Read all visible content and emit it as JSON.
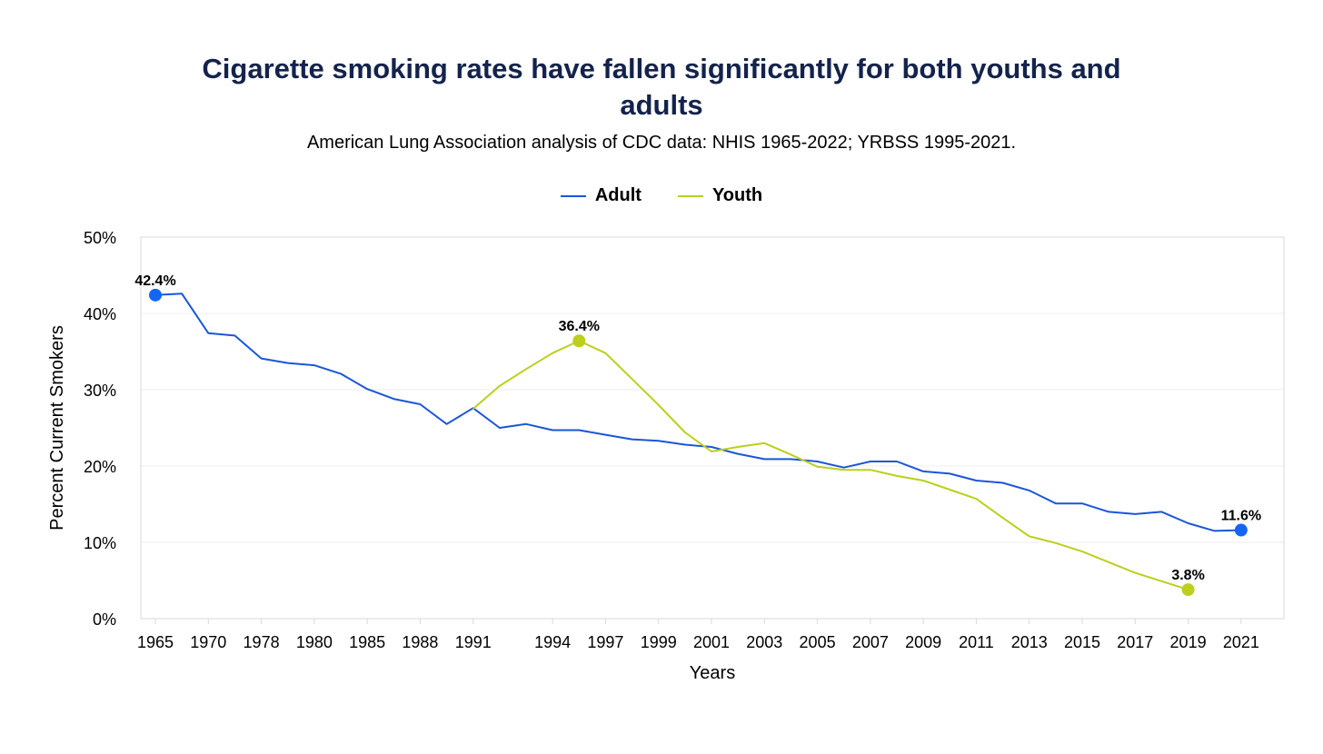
{
  "chart_data": {
    "type": "line",
    "title_lines": [
      "Cigarette smoking rates have fallen significantly for both youths and",
      "adults"
    ],
    "subtitle": "American Lung Association analysis of CDC data: NHIS 1965-2022; YRBSS 1995-2021.",
    "xlabel": "Years",
    "ylabel": "Percent Current Smokers",
    "ylim": [
      0,
      50
    ],
    "yticks": [
      0,
      10,
      20,
      30,
      40,
      50
    ],
    "ytick_labels": [
      "0%",
      "10%",
      "20%",
      "30%",
      "40%",
      "50%"
    ],
    "categories": [
      "1965",
      "1966",
      "1970",
      "1974",
      "1978",
      "1979",
      "1980",
      "1983",
      "1985",
      "1987",
      "1988",
      "1990",
      "1991",
      "1992",
      "1993",
      "1994",
      "1995",
      "1997",
      "1998",
      "1999",
      "2000",
      "2001",
      "2002",
      "2003",
      "2004",
      "2005",
      "2006",
      "2007",
      "2008",
      "2009",
      "2010",
      "2011",
      "2012",
      "2013",
      "2014",
      "2015",
      "2016",
      "2017",
      "2018",
      "2019",
      "2020",
      "2021",
      "2022"
    ],
    "xtick_labels": [
      "1965",
      "1970",
      "1978",
      "1980",
      "1985",
      "1988",
      "1991",
      "1994",
      "1997",
      "1999",
      "2001",
      "2003",
      "2005",
      "2007",
      "2009",
      "2011",
      "2013",
      "2015",
      "2017",
      "2019",
      "2021"
    ],
    "series": [
      {
        "name": "Adult",
        "color": "#1a56d6",
        "values": [
          42.4,
          42.6,
          37.4,
          37.1,
          34.1,
          33.5,
          33.2,
          32.1,
          30.1,
          28.8,
          28.1,
          25.5,
          27.6,
          25.0,
          25.5,
          24.7,
          24.7,
          24.1,
          23.5,
          23.3,
          22.8,
          22.5,
          21.6,
          20.9,
          20.9,
          20.6,
          19.8,
          20.6,
          20.6,
          19.3,
          19.0,
          18.1,
          17.8,
          16.8,
          15.1,
          15.1,
          14.0,
          13.7,
          14.0,
          12.5,
          11.5,
          11.6,
          null
        ],
        "annotations": [
          {
            "index": 0,
            "label": "42.4%"
          },
          {
            "index": 41,
            "label": "11.6%"
          }
        ]
      },
      {
        "name": "Youth",
        "color": "#bccf1c",
        "values": [
          null,
          null,
          null,
          null,
          null,
          null,
          null,
          null,
          null,
          null,
          null,
          null,
          27.5,
          30.5,
          32.7,
          34.8,
          36.4,
          34.8,
          31.4,
          28.0,
          24.4,
          21.9,
          22.5,
          23.0,
          21.5,
          19.9,
          19.5,
          19.5,
          18.7,
          18.1,
          16.9,
          15.7,
          13.2,
          10.8,
          9.9,
          8.8,
          7.4,
          6.0,
          4.9,
          3.8,
          null,
          null,
          null
        ],
        "annotations": [
          {
            "index": 16,
            "label": "36.4%"
          },
          {
            "index": 39,
            "label": "3.8%"
          }
        ]
      }
    ],
    "grid": true,
    "legend_position": "top-center"
  }
}
